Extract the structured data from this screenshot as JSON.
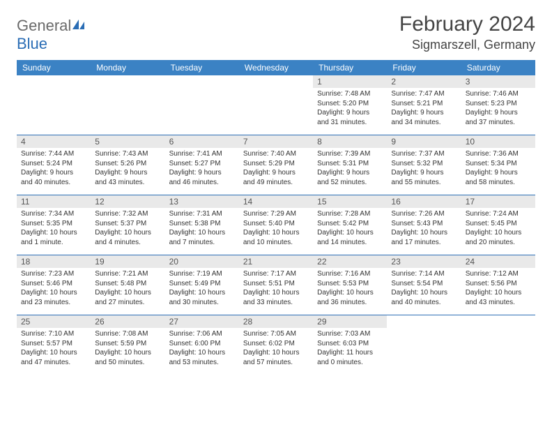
{
  "logo": {
    "text1": "General",
    "text2": "Blue"
  },
  "title": "February 2024",
  "location": "Sigmarszell, Germany",
  "colors": {
    "header_bg": "#3b82c4",
    "header_text": "#ffffff",
    "daynum_bg": "#e9e9e9",
    "week_divider": "#2a6db5",
    "logo_gray": "#6a6a6a",
    "logo_blue": "#2a6db5",
    "text": "#333333",
    "background": "#ffffff"
  },
  "typography": {
    "title_fontsize": 30,
    "location_fontsize": 18,
    "dayheader_fontsize": 12,
    "daynum_fontsize": 12,
    "body_fontsize": 10,
    "font_family": "Arial"
  },
  "layout": {
    "columns": 7,
    "rows": 5,
    "cell_min_height": 85
  },
  "day_headers": [
    "Sunday",
    "Monday",
    "Tuesday",
    "Wednesday",
    "Thursday",
    "Friday",
    "Saturday"
  ],
  "weeks": [
    [
      {
        "num": "",
        "lines": [
          "",
          "",
          "",
          ""
        ],
        "empty": true
      },
      {
        "num": "",
        "lines": [
          "",
          "",
          "",
          ""
        ],
        "empty": true
      },
      {
        "num": "",
        "lines": [
          "",
          "",
          "",
          ""
        ],
        "empty": true
      },
      {
        "num": "",
        "lines": [
          "",
          "",
          "",
          ""
        ],
        "empty": true
      },
      {
        "num": "1",
        "lines": [
          "Sunrise: 7:48 AM",
          "Sunset: 5:20 PM",
          "Daylight: 9 hours",
          "and 31 minutes."
        ]
      },
      {
        "num": "2",
        "lines": [
          "Sunrise: 7:47 AM",
          "Sunset: 5:21 PM",
          "Daylight: 9 hours",
          "and 34 minutes."
        ]
      },
      {
        "num": "3",
        "lines": [
          "Sunrise: 7:46 AM",
          "Sunset: 5:23 PM",
          "Daylight: 9 hours",
          "and 37 minutes."
        ]
      }
    ],
    [
      {
        "num": "4",
        "lines": [
          "Sunrise: 7:44 AM",
          "Sunset: 5:24 PM",
          "Daylight: 9 hours",
          "and 40 minutes."
        ]
      },
      {
        "num": "5",
        "lines": [
          "Sunrise: 7:43 AM",
          "Sunset: 5:26 PM",
          "Daylight: 9 hours",
          "and 43 minutes."
        ]
      },
      {
        "num": "6",
        "lines": [
          "Sunrise: 7:41 AM",
          "Sunset: 5:27 PM",
          "Daylight: 9 hours",
          "and 46 minutes."
        ]
      },
      {
        "num": "7",
        "lines": [
          "Sunrise: 7:40 AM",
          "Sunset: 5:29 PM",
          "Daylight: 9 hours",
          "and 49 minutes."
        ]
      },
      {
        "num": "8",
        "lines": [
          "Sunrise: 7:39 AM",
          "Sunset: 5:31 PM",
          "Daylight: 9 hours",
          "and 52 minutes."
        ]
      },
      {
        "num": "9",
        "lines": [
          "Sunrise: 7:37 AM",
          "Sunset: 5:32 PM",
          "Daylight: 9 hours",
          "and 55 minutes."
        ]
      },
      {
        "num": "10",
        "lines": [
          "Sunrise: 7:36 AM",
          "Sunset: 5:34 PM",
          "Daylight: 9 hours",
          "and 58 minutes."
        ]
      }
    ],
    [
      {
        "num": "11",
        "lines": [
          "Sunrise: 7:34 AM",
          "Sunset: 5:35 PM",
          "Daylight: 10 hours",
          "and 1 minute."
        ]
      },
      {
        "num": "12",
        "lines": [
          "Sunrise: 7:32 AM",
          "Sunset: 5:37 PM",
          "Daylight: 10 hours",
          "and 4 minutes."
        ]
      },
      {
        "num": "13",
        "lines": [
          "Sunrise: 7:31 AM",
          "Sunset: 5:38 PM",
          "Daylight: 10 hours",
          "and 7 minutes."
        ]
      },
      {
        "num": "14",
        "lines": [
          "Sunrise: 7:29 AM",
          "Sunset: 5:40 PM",
          "Daylight: 10 hours",
          "and 10 minutes."
        ]
      },
      {
        "num": "15",
        "lines": [
          "Sunrise: 7:28 AM",
          "Sunset: 5:42 PM",
          "Daylight: 10 hours",
          "and 14 minutes."
        ]
      },
      {
        "num": "16",
        "lines": [
          "Sunrise: 7:26 AM",
          "Sunset: 5:43 PM",
          "Daylight: 10 hours",
          "and 17 minutes."
        ]
      },
      {
        "num": "17",
        "lines": [
          "Sunrise: 7:24 AM",
          "Sunset: 5:45 PM",
          "Daylight: 10 hours",
          "and 20 minutes."
        ]
      }
    ],
    [
      {
        "num": "18",
        "lines": [
          "Sunrise: 7:23 AM",
          "Sunset: 5:46 PM",
          "Daylight: 10 hours",
          "and 23 minutes."
        ]
      },
      {
        "num": "19",
        "lines": [
          "Sunrise: 7:21 AM",
          "Sunset: 5:48 PM",
          "Daylight: 10 hours",
          "and 27 minutes."
        ]
      },
      {
        "num": "20",
        "lines": [
          "Sunrise: 7:19 AM",
          "Sunset: 5:49 PM",
          "Daylight: 10 hours",
          "and 30 minutes."
        ]
      },
      {
        "num": "21",
        "lines": [
          "Sunrise: 7:17 AM",
          "Sunset: 5:51 PM",
          "Daylight: 10 hours",
          "and 33 minutes."
        ]
      },
      {
        "num": "22",
        "lines": [
          "Sunrise: 7:16 AM",
          "Sunset: 5:53 PM",
          "Daylight: 10 hours",
          "and 36 minutes."
        ]
      },
      {
        "num": "23",
        "lines": [
          "Sunrise: 7:14 AM",
          "Sunset: 5:54 PM",
          "Daylight: 10 hours",
          "and 40 minutes."
        ]
      },
      {
        "num": "24",
        "lines": [
          "Sunrise: 7:12 AM",
          "Sunset: 5:56 PM",
          "Daylight: 10 hours",
          "and 43 minutes."
        ]
      }
    ],
    [
      {
        "num": "25",
        "lines": [
          "Sunrise: 7:10 AM",
          "Sunset: 5:57 PM",
          "Daylight: 10 hours",
          "and 47 minutes."
        ]
      },
      {
        "num": "26",
        "lines": [
          "Sunrise: 7:08 AM",
          "Sunset: 5:59 PM",
          "Daylight: 10 hours",
          "and 50 minutes."
        ]
      },
      {
        "num": "27",
        "lines": [
          "Sunrise: 7:06 AM",
          "Sunset: 6:00 PM",
          "Daylight: 10 hours",
          "and 53 minutes."
        ]
      },
      {
        "num": "28",
        "lines": [
          "Sunrise: 7:05 AM",
          "Sunset: 6:02 PM",
          "Daylight: 10 hours",
          "and 57 minutes."
        ]
      },
      {
        "num": "29",
        "lines": [
          "Sunrise: 7:03 AM",
          "Sunset: 6:03 PM",
          "Daylight: 11 hours",
          "and 0 minutes."
        ]
      },
      {
        "num": "",
        "lines": [
          "",
          "",
          "",
          ""
        ],
        "empty": true
      },
      {
        "num": "",
        "lines": [
          "",
          "",
          "",
          ""
        ],
        "empty": true
      }
    ]
  ]
}
